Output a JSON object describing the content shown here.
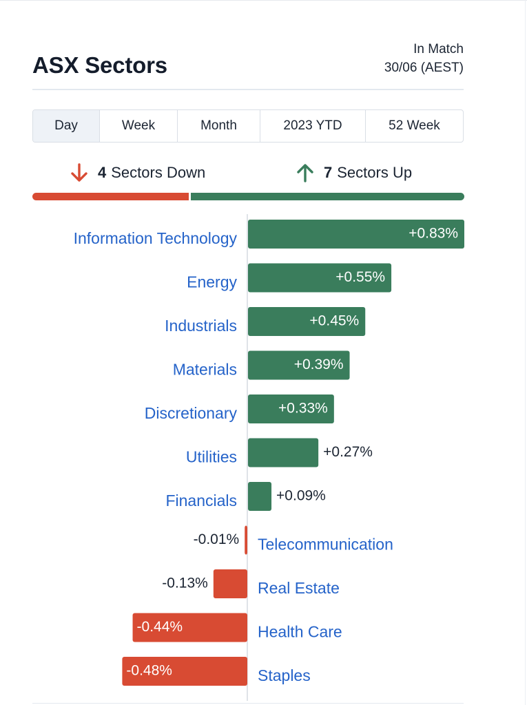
{
  "header": {
    "title": "ASX Sectors",
    "status_line1": "In Match",
    "status_line2": "30/06 (AEST)"
  },
  "tabs": [
    {
      "label": "Day",
      "active": true
    },
    {
      "label": "Week",
      "active": false
    },
    {
      "label": "Month",
      "active": false
    },
    {
      "label": "2023 YTD",
      "active": false
    },
    {
      "label": "52 Week",
      "active": false
    }
  ],
  "summary": {
    "down_count": "4",
    "down_label": "Sectors Down",
    "up_count": "7",
    "up_label": "Sectors Up"
  },
  "colors": {
    "up": "#3a7d5c",
    "down": "#d84b33",
    "sector_link": "#2563c9",
    "text": "#1b2432"
  },
  "chart_data": {
    "type": "bar",
    "orientation": "horizontal",
    "unit": "%",
    "categories": [
      "Information Technology",
      "Energy",
      "Industrials",
      "Materials",
      "Discretionary",
      "Utilities",
      "Financials",
      "Telecommunication",
      "Real Estate",
      "Health Care",
      "Staples"
    ],
    "values": [
      0.83,
      0.55,
      0.45,
      0.39,
      0.33,
      0.27,
      0.09,
      -0.01,
      -0.13,
      -0.44,
      -0.48
    ],
    "value_labels": [
      "+0.83%",
      "+0.55%",
      "+0.45%",
      "+0.39%",
      "+0.33%",
      "+0.27%",
      "+0.09%",
      "-0.01%",
      "-0.13%",
      "-0.44%",
      "-0.48%"
    ],
    "title": "",
    "xlabel": "",
    "ylabel": ""
  }
}
